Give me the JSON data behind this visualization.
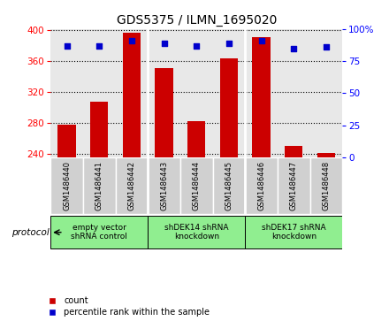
{
  "title": "GDS5375 / ILMN_1695020",
  "samples": [
    "GSM1486440",
    "GSM1486441",
    "GSM1486442",
    "GSM1486443",
    "GSM1486444",
    "GSM1486445",
    "GSM1486446",
    "GSM1486447",
    "GSM1486448"
  ],
  "counts": [
    278,
    308,
    397,
    351,
    282,
    364,
    391,
    250,
    241
  ],
  "percentile_ranks": [
    87,
    87,
    91,
    89,
    87,
    89,
    91,
    85,
    86
  ],
  "ylim_left": [
    235,
    402
  ],
  "ylim_right": [
    0,
    100
  ],
  "yticks_left": [
    240,
    280,
    320,
    360,
    400
  ],
  "yticks_right": [
    0,
    25,
    50,
    75,
    100
  ],
  "bar_color": "#CC0000",
  "dot_color": "#0000CC",
  "bg_color": "#E8E8E8",
  "sample_box_color": "#D0D0D0",
  "protocol_groups": [
    {
      "label": "empty vector\nshRNA control",
      "start": 0,
      "end": 3,
      "color": "#90EE90"
    },
    {
      "label": "shDEK14 shRNA\nknockdown",
      "start": 3,
      "end": 6,
      "color": "#90EE90"
    },
    {
      "label": "shDEK17 shRNA\nknockdown",
      "start": 6,
      "end": 9,
      "color": "#90EE90"
    }
  ],
  "legend_count_label": "count",
  "legend_percentile_label": "percentile rank within the sample",
  "protocol_label": "protocol"
}
